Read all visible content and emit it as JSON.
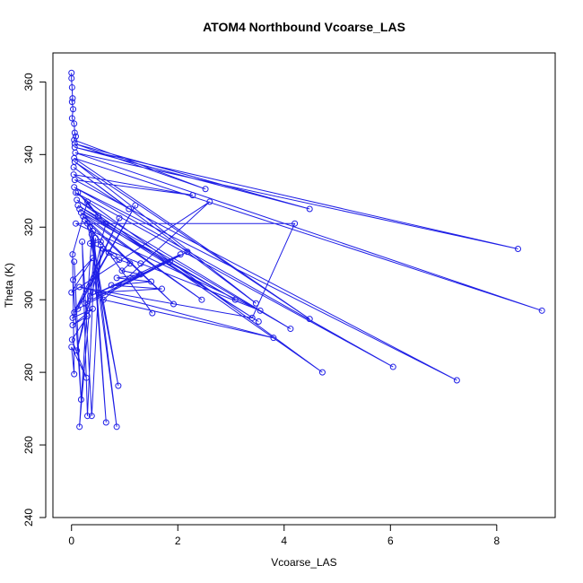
{
  "chart_data": {
    "type": "line",
    "title": "ATOM4 Northbound Vcoarse_LAS",
    "xlabel": "Vcoarse_LAS",
    "ylabel": "Theta (K)",
    "xlim": [
      -0.35,
      9.1
    ],
    "ylim": [
      240,
      368
    ],
    "xticks": [
      0,
      2,
      4,
      6,
      8
    ],
    "yticks": [
      240,
      260,
      280,
      300,
      320,
      340,
      360
    ],
    "color": "#1f1fe6",
    "series": [
      {
        "points": [
          [
            0.0,
            362.5
          ],
          [
            0.0,
            361.0
          ],
          [
            0.01,
            358.5
          ],
          [
            0.02,
            355.5
          ],
          [
            0.01,
            354.5
          ],
          [
            0.03,
            352.5
          ],
          [
            0.01,
            350.0
          ],
          [
            0.05,
            348.5
          ],
          [
            0.06,
            346.0
          ],
          [
            0.08,
            345.0
          ],
          [
            0.05,
            344.0
          ],
          [
            2.52,
            330.5
          ],
          [
            0.06,
            343.0
          ],
          [
            4.48,
            325.0
          ],
          [
            0.06,
            342.0
          ],
          [
            8.4,
            314.0
          ],
          [
            0.07,
            340.5
          ],
          [
            8.85,
            297.0
          ],
          [
            0.05,
            339.0
          ],
          [
            4.48,
            294.7
          ],
          [
            0.06,
            338.0
          ],
          [
            3.47,
            299.0
          ],
          [
            0.04,
            336.5
          ],
          [
            1.08,
            325.0
          ],
          [
            0.04,
            334.5
          ],
          [
            2.28,
            328.8
          ],
          [
            0.06,
            333.0
          ],
          [
            7.25,
            277.8
          ],
          [
            0.05,
            331.0
          ],
          [
            6.05,
            281.5
          ],
          [
            0.08,
            329.5
          ],
          [
            4.72,
            280.0
          ],
          [
            0.1,
            327.5
          ],
          [
            4.12,
            292.0
          ],
          [
            0.12,
            326.0
          ],
          [
            3.52,
            294.0
          ],
          [
            0.15,
            325.0
          ],
          [
            3.08,
            300.0
          ],
          [
            0.18,
            324.0
          ],
          [
            2.45,
            300.0
          ],
          [
            0.22,
            323.0
          ],
          [
            1.92,
            298.8
          ],
          [
            0.25,
            322.0
          ],
          [
            1.52,
            296.3
          ],
          [
            0.3,
            321.0
          ],
          [
            0.88,
            276.3
          ],
          [
            0.35,
            320.0
          ],
          [
            0.85,
            265.0
          ],
          [
            0.4,
            319.0
          ],
          [
            0.65,
            266.2
          ],
          [
            0.38,
            318.0
          ],
          [
            0.15,
            265.0
          ],
          [
            0.45,
            317.0
          ],
          [
            0.3,
            268.0
          ],
          [
            0.2,
            316.0
          ],
          [
            0.38,
            268.0
          ],
          [
            0.55,
            315.0
          ],
          [
            0.1,
            286.0
          ],
          [
            0.6,
            314.0
          ],
          [
            0.7,
            313.0
          ],
          [
            0.8,
            312.0
          ],
          [
            0.9,
            311.0
          ],
          [
            1.1,
            310.0
          ],
          [
            0.95,
            308.0
          ],
          [
            1.3,
            307.0
          ],
          [
            0.85,
            306.0
          ],
          [
            1.5,
            305.0
          ],
          [
            0.75,
            304.0
          ],
          [
            1.7,
            303.0
          ],
          [
            0.5,
            302.0
          ],
          [
            1.85,
            310.5
          ],
          [
            0.35,
            301.0
          ],
          [
            2.05,
            312.5
          ],
          [
            0.25,
            299.0
          ],
          [
            2.18,
            313.2
          ],
          [
            0.12,
            297.5
          ],
          [
            0.9,
            322.5
          ],
          [
            0.05,
            296.5
          ],
          [
            1.2,
            326.0
          ],
          [
            0.02,
            295.0
          ],
          [
            0.4,
            297.5
          ],
          [
            0.02,
            293.0
          ],
          [
            0.3,
            295.5
          ],
          [
            0.01,
            289.0
          ],
          [
            0.28,
            278.5
          ],
          [
            0.0,
            287.0
          ],
          [
            0.05,
            279.5
          ],
          [
            0.02,
            312.5
          ],
          [
            0.3,
            327.0
          ],
          [
            0.5,
            323.0
          ],
          [
            0.12,
            329.5
          ],
          [
            0.65,
            321.0
          ],
          [
            0.55,
            316.0
          ],
          [
            0.35,
            315.5
          ],
          [
            1.3,
            310.0
          ],
          [
            3.55,
            297.0
          ],
          [
            0.08,
            321.0
          ],
          [
            4.2,
            321.0
          ],
          [
            3.4,
            295.0
          ],
          [
            0.15,
            303.5
          ],
          [
            3.8,
            289.5
          ],
          [
            0.6,
            300.0
          ],
          [
            2.6,
            327.0
          ],
          [
            0.0,
            302.0
          ],
          [
            0.4,
            311.5
          ],
          [
            0.03,
            305.5
          ],
          [
            0.18,
            272.5
          ],
          [
            0.05,
            310.5
          ]
        ]
      }
    ]
  }
}
